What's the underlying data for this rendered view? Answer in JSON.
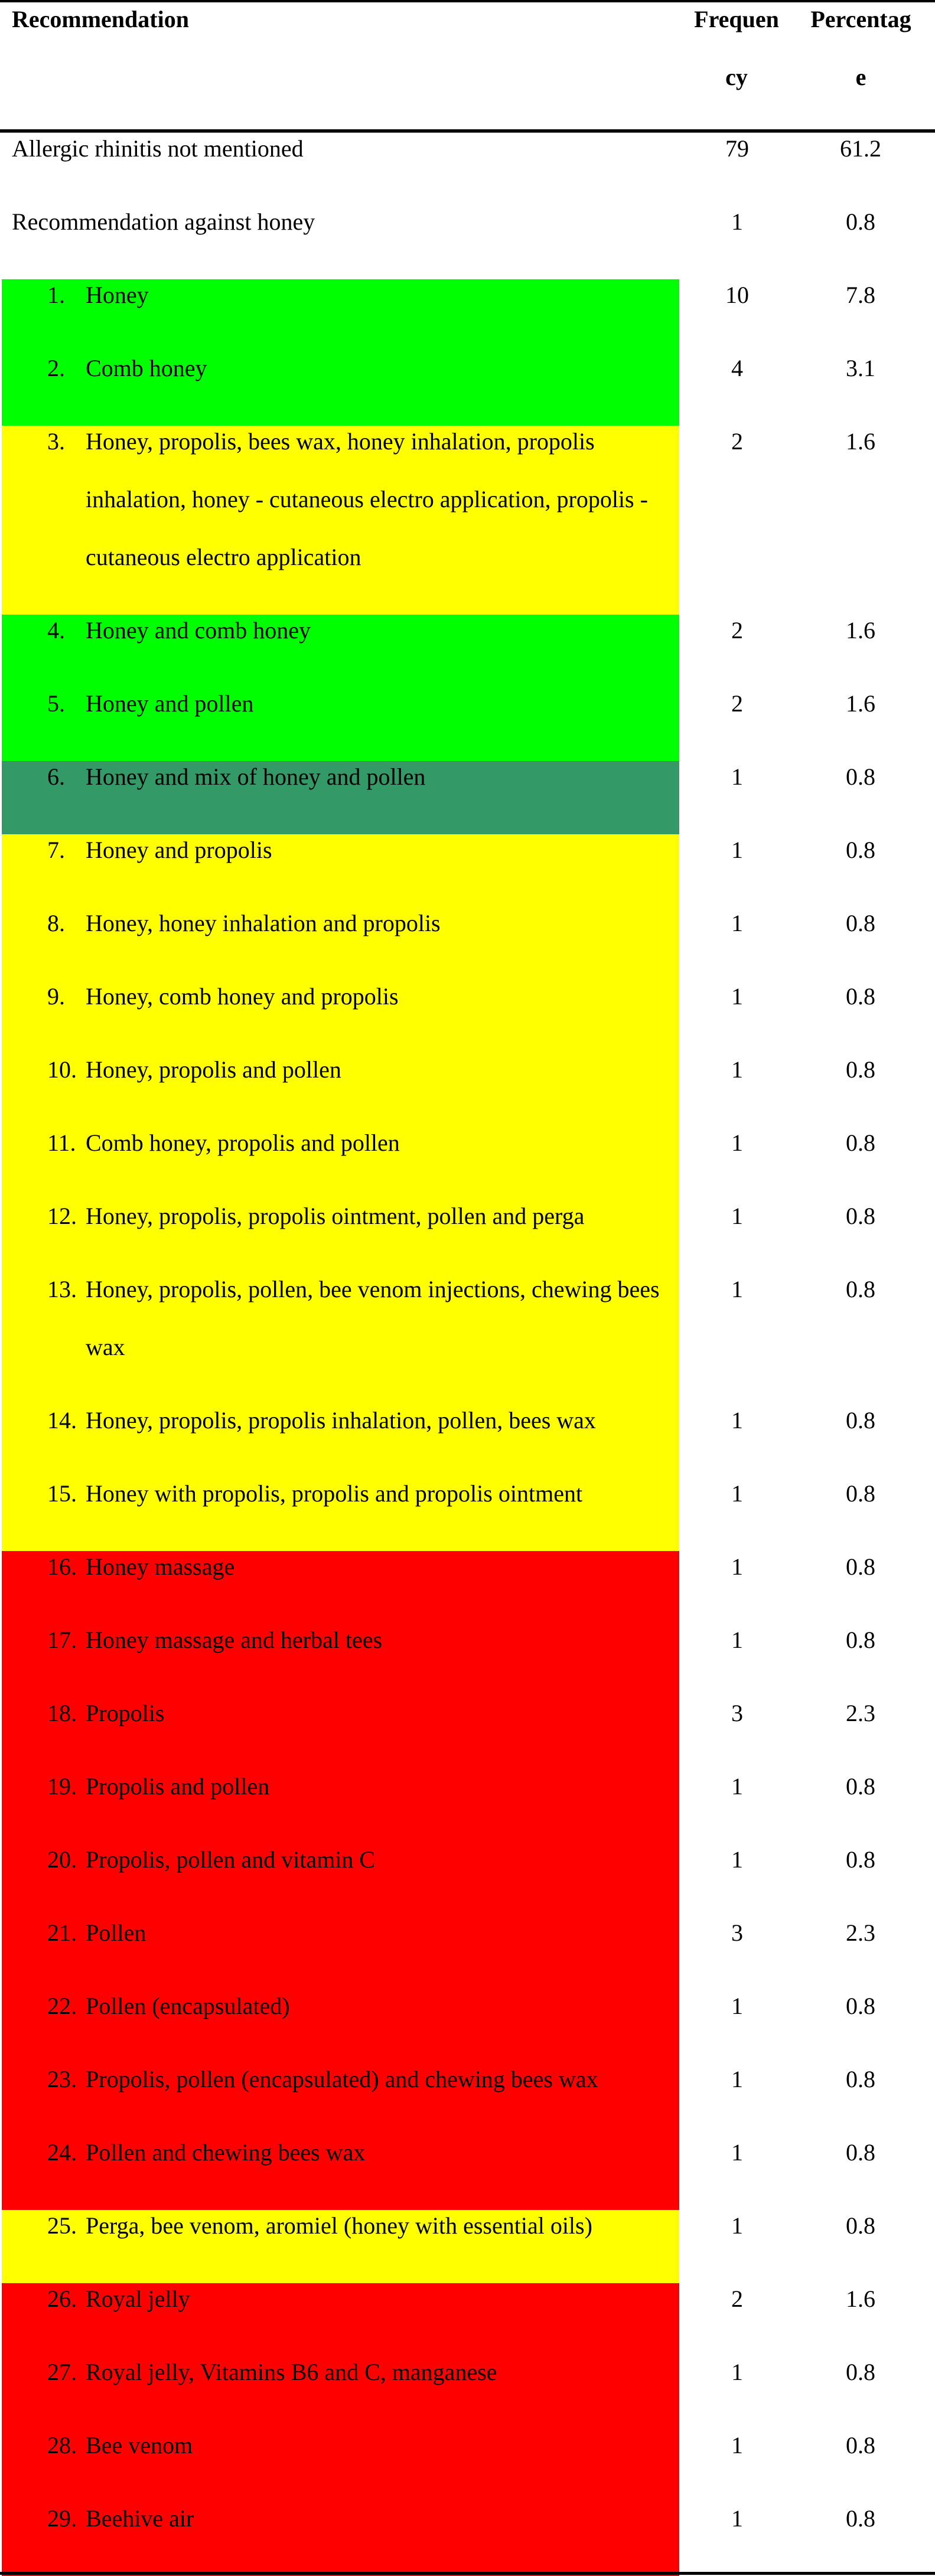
{
  "header": {
    "recommendation": "Recommendation",
    "frequency": "Frequency",
    "percentage": "Percentage"
  },
  "colors": {
    "green": "#00ff00",
    "yellow": "#ffff00",
    "red": "#ff0000",
    "teal": "#339966"
  },
  "rows": [
    {
      "num": "",
      "text": "Allergic rhinitis not mentioned",
      "frequency": "79",
      "percentage": "61.2",
      "color": ""
    },
    {
      "num": "",
      "text": "Recommendation against honey",
      "frequency": "1",
      "percentage": "0.8",
      "color": ""
    },
    {
      "num": "1.",
      "text": "Honey",
      "frequency": "10",
      "percentage": "7.8",
      "color": "#00ff00"
    },
    {
      "num": "2.",
      "text": "Comb honey",
      "frequency": "4",
      "percentage": "3.1",
      "color": "#00ff00"
    },
    {
      "num": "3.",
      "text": "Honey, propolis, bees wax, honey inhalation, propolis inhalation, honey - cutaneous electro application, propolis - cutaneous electro application",
      "frequency": "2",
      "percentage": "1.6",
      "color": "#ffff00"
    },
    {
      "num": "4.",
      "text": "Honey and comb honey",
      "frequency": "2",
      "percentage": "1.6",
      "color": "#00ff00"
    },
    {
      "num": "5.",
      "text": "Honey and pollen",
      "frequency": "2",
      "percentage": "1.6",
      "color": "#00ff00"
    },
    {
      "num": "6.",
      "text": "Honey and mix of honey and pollen",
      "frequency": "1",
      "percentage": "0.8",
      "color": "#339966"
    },
    {
      "num": "7.",
      "text": "Honey and propolis",
      "frequency": "1",
      "percentage": "0.8",
      "color": "#ffff00"
    },
    {
      "num": "8.",
      "text": "Honey, honey inhalation and propolis",
      "frequency": "1",
      "percentage": "0.8",
      "color": "#ffff00"
    },
    {
      "num": "9.",
      "text": "Honey, comb honey and propolis",
      "frequency": "1",
      "percentage": "0.8",
      "color": "#ffff00"
    },
    {
      "num": "10.",
      "text": "Honey, propolis and pollen",
      "frequency": "1",
      "percentage": "0.8",
      "color": "#ffff00"
    },
    {
      "num": "11.",
      "text": "Comb honey, propolis and pollen",
      "frequency": "1",
      "percentage": "0.8",
      "color": "#ffff00"
    },
    {
      "num": "12.",
      "text": "Honey, propolis, propolis ointment, pollen and perga",
      "frequency": "1",
      "percentage": "0.8",
      "color": "#ffff00"
    },
    {
      "num": "13.",
      "text": "Honey, propolis, pollen, bee venom injections, chewing bees wax",
      "frequency": "1",
      "percentage": "0.8",
      "color": "#ffff00"
    },
    {
      "num": "14.",
      "text": "Honey, propolis, propolis inhalation, pollen, bees wax",
      "frequency": "1",
      "percentage": "0.8",
      "color": "#ffff00"
    },
    {
      "num": "15.",
      "text": "Honey with propolis, propolis and propolis ointment",
      "frequency": "1",
      "percentage": "0.8",
      "color": "#ffff00"
    },
    {
      "num": "16.",
      "text": "Honey massage",
      "frequency": "1",
      "percentage": "0.8",
      "color": "#ff0000"
    },
    {
      "num": "17.",
      "text": "Honey massage and herbal tees",
      "frequency": "1",
      "percentage": "0.8",
      "color": "#ff0000"
    },
    {
      "num": "18.",
      "text": "Propolis",
      "frequency": "3",
      "percentage": "2.3",
      "color": "#ff0000"
    },
    {
      "num": "19.",
      "text": "Propolis and pollen",
      "frequency": "1",
      "percentage": "0.8",
      "color": "#ff0000"
    },
    {
      "num": "20.",
      "text": "Propolis, pollen and vitamin C",
      "frequency": "1",
      "percentage": "0.8",
      "color": "#ff0000"
    },
    {
      "num": "21.",
      "text": "Pollen",
      "frequency": "3",
      "percentage": "2.3",
      "color": "#ff0000"
    },
    {
      "num": "22.",
      "text": "Pollen (encapsulated)",
      "frequency": "1",
      "percentage": "0.8",
      "color": "#ff0000"
    },
    {
      "num": "23.",
      "text": "Propolis, pollen (encapsulated) and chewing bees wax",
      "frequency": "1",
      "percentage": "0.8",
      "color": "#ff0000"
    },
    {
      "num": "24.",
      "text": "Pollen and chewing bees wax",
      "frequency": "1",
      "percentage": "0.8",
      "color": "#ff0000"
    },
    {
      "num": "25.",
      "text": "Perga, bee venom, aromiel (honey with essential oils)",
      "frequency": "1",
      "percentage": "0.8",
      "color": "#ffff00"
    },
    {
      "num": "26.",
      "text": "Royal jelly",
      "frequency": "2",
      "percentage": "1.6",
      "color": "#ff0000"
    },
    {
      "num": "27.",
      "text": "Royal jelly, Vitamins B6 and C, manganese",
      "frequency": "1",
      "percentage": "0.8",
      "color": "#ff0000"
    },
    {
      "num": "28.",
      "text": "Bee venom",
      "frequency": "1",
      "percentage": "0.8",
      "color": "#ff0000"
    },
    {
      "num": "29.",
      "text": "Beehive air",
      "frequency": "1",
      "percentage": "0.8",
      "color": "#ff0000"
    }
  ]
}
